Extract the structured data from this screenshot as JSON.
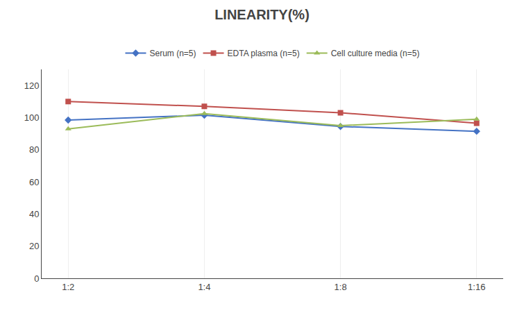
{
  "chart_data": {
    "type": "line",
    "title": "LINEARITY(%)",
    "categories": [
      "1:2",
      "1:4",
      "1:8",
      "1:16"
    ],
    "series": [
      {
        "name": "Serum (n=5)",
        "color": "#4472C4",
        "marker": "diamond",
        "values": [
          98.5,
          101.5,
          94.5,
          91.5
        ]
      },
      {
        "name": "EDTA plasma (n=5)",
        "color": "#C0504D",
        "marker": "square",
        "values": [
          110.0,
          107.0,
          103.0,
          96.5
        ]
      },
      {
        "name": "Cell culture media (n=5)",
        "color": "#9BBB59",
        "marker": "triangle-up",
        "values": [
          93.0,
          102.5,
          95.0,
          99.0
        ]
      }
    ],
    "ylim": [
      0,
      130
    ],
    "yticks": [
      0,
      20,
      40,
      60,
      80,
      100,
      120
    ],
    "grid": "x",
    "legend": "top"
  }
}
